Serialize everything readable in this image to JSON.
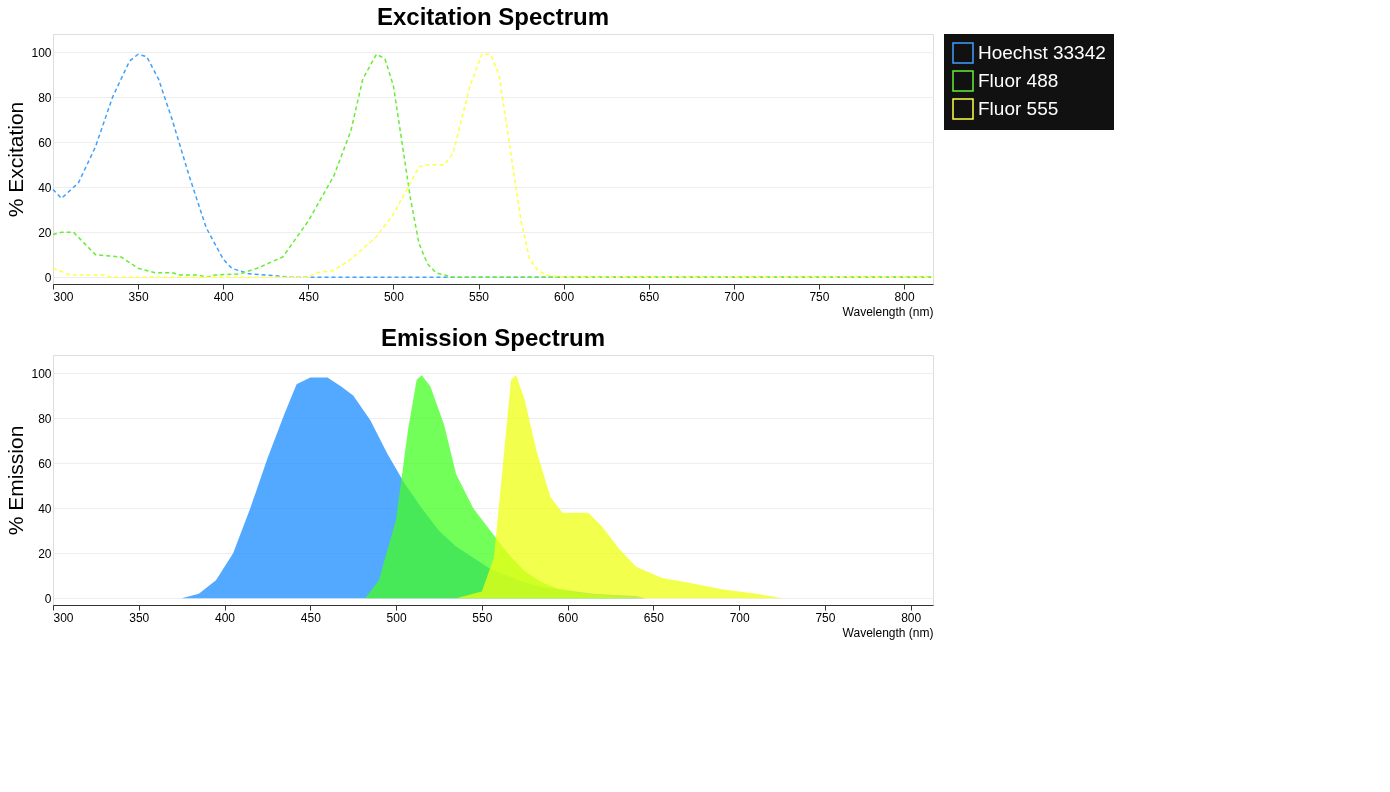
{
  "chart_data": [
    {
      "type": "line",
      "title": "Excitation Spectrum",
      "xlabel": "Wavelength (nm)",
      "ylabel": "%  Excitation",
      "xlim": [
        300,
        817
      ],
      "xticks": [
        300,
        350,
        400,
        450,
        500,
        550,
        600,
        650,
        700,
        750,
        800
      ],
      "ylim": [
        -3,
        108
      ],
      "yticks": [
        0,
        20,
        40,
        60,
        80,
        100
      ],
      "grid": "y",
      "legend": "right",
      "line_style": "dashed",
      "series": [
        {
          "name": "Hoechst 33342",
          "color": "#3fa0ff",
          "x": [
            300,
            305,
            315,
            325,
            335,
            345,
            350,
            355,
            362,
            370,
            380,
            390,
            400,
            405,
            415,
            425,
            440,
            817
          ],
          "values": [
            39,
            35,
            42,
            58,
            80,
            96,
            99,
            98,
            88,
            70,
            45,
            22,
            8,
            4,
            1.5,
            1,
            0,
            0
          ]
        },
        {
          "name": "Fluor 488",
          "color": "#66ee33",
          "x": [
            300,
            305,
            312,
            325,
            340,
            350,
            360,
            370,
            375,
            385,
            390,
            395,
            410,
            420,
            435,
            450,
            465,
            475,
            482,
            490,
            495,
            500,
            505,
            510,
            515,
            520,
            525,
            535,
            817
          ],
          "values": [
            19,
            20,
            20,
            10,
            9,
            4,
            2,
            2,
            1,
            1,
            0,
            1,
            1.5,
            4,
            9,
            25,
            45,
            65,
            88,
            99,
            97,
            85,
            60,
            35,
            15,
            6,
            2,
            0,
            0
          ]
        },
        {
          "name": "Fluor 555",
          "color": "#ffff44",
          "x": [
            300,
            310,
            330,
            335,
            450,
            455,
            465,
            475,
            490,
            500,
            510,
            515,
            520,
            530,
            535,
            545,
            552,
            557,
            562,
            568,
            575,
            580,
            585,
            590,
            600,
            817
          ],
          "values": [
            4,
            1,
            1,
            0,
            0,
            2,
            3,
            8,
            18,
            28,
            42,
            49,
            50,
            50,
            55,
            85,
            99,
            99,
            90,
            60,
            25,
            8,
            3,
            1,
            0,
            0
          ]
        }
      ]
    },
    {
      "type": "area",
      "title": "Emission Spectrum",
      "xlabel": "Wavelength (nm)",
      "ylabel": "% Emission",
      "xlim": [
        300,
        813
      ],
      "xticks": [
        300,
        350,
        400,
        450,
        500,
        550,
        600,
        650,
        700,
        750,
        800
      ],
      "ylim": [
        -3,
        108
      ],
      "yticks": [
        0,
        20,
        40,
        60,
        80,
        100
      ],
      "grid": "y",
      "legend": false,
      "series": [
        {
          "color": "#1a8cff",
          "x": [
            375,
            385,
            395,
            405,
            415,
            425,
            435,
            442,
            450,
            460,
            468,
            475,
            485,
            495,
            505,
            515,
            525,
            535,
            545,
            555,
            565,
            575,
            585,
            595,
            605,
            615,
            625,
            640,
            645
          ],
          "values": [
            0,
            2,
            8,
            20,
            40,
            62,
            82,
            95,
            98,
            98,
            94,
            90,
            79,
            64,
            51,
            40,
            30,
            23,
            18,
            13,
            10,
            7,
            5,
            4,
            3,
            2,
            1.5,
            1,
            0
          ]
        },
        {
          "color": "#44ff22",
          "x": [
            482,
            490,
            500,
            507,
            512,
            515,
            520,
            528,
            535,
            545,
            555,
            565,
            575,
            585,
            595,
            610,
            625,
            640
          ],
          "values": [
            0,
            8,
            35,
            75,
            97,
            99,
            94,
            77,
            55,
            40,
            30,
            20,
            12,
            7,
            4,
            2,
            1,
            0
          ]
        },
        {
          "color": "#eeff11",
          "x": [
            535,
            550,
            557,
            563,
            567,
            570,
            575,
            582,
            590,
            597,
            612,
            620,
            630,
            640,
            655,
            670,
            690,
            710,
            725
          ],
          "values": [
            0,
            3,
            18,
            65,
            97,
            99,
            88,
            65,
            45,
            38,
            38,
            32,
            22,
            14,
            9,
            7,
            4,
            2,
            0
          ]
        }
      ]
    }
  ]
}
